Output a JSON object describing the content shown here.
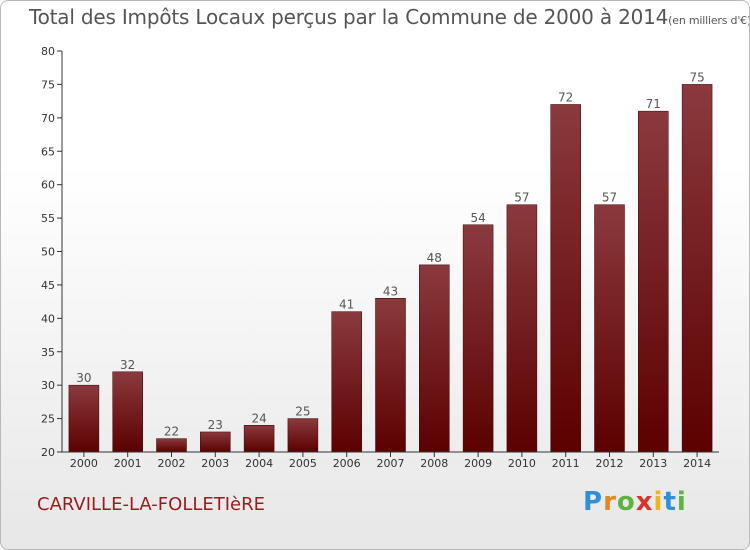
{
  "title": "Total des Impôts Locaux perçus par la Commune de 2000 à 2014",
  "unit_note": "(en milliers d'€)",
  "commune": "CARVILLE-LA-FOLLETIèRE",
  "logo": {
    "letters": [
      "P",
      "r",
      "o",
      "x",
      "i",
      "t",
      "i"
    ],
    "colors": [
      "#2f8fd8",
      "#e08a1e",
      "#5db33f",
      "#d8332e",
      "#f2b31c",
      "#2f8fd8",
      "#5db33f"
    ]
  },
  "colors": {
    "bar_top": "#8a3a3e",
    "bar_bottom": "#5c0000",
    "text": "#555555",
    "commune": "#9b1b1b"
  },
  "chart_data": {
    "type": "bar",
    "categories": [
      "2000",
      "2001",
      "2002",
      "2003",
      "2004",
      "2005",
      "2006",
      "2007",
      "2008",
      "2009",
      "2010",
      "2011",
      "2012",
      "2013",
      "2014"
    ],
    "values": [
      30,
      32,
      22,
      23,
      24,
      25,
      41,
      43,
      48,
      54,
      57,
      72,
      57,
      71,
      75
    ],
    "ylim": [
      20,
      80
    ],
    "yticks": [
      20,
      25,
      30,
      35,
      40,
      45,
      50,
      55,
      60,
      65,
      70,
      75,
      80
    ],
    "grid": false,
    "data_labels": true
  }
}
